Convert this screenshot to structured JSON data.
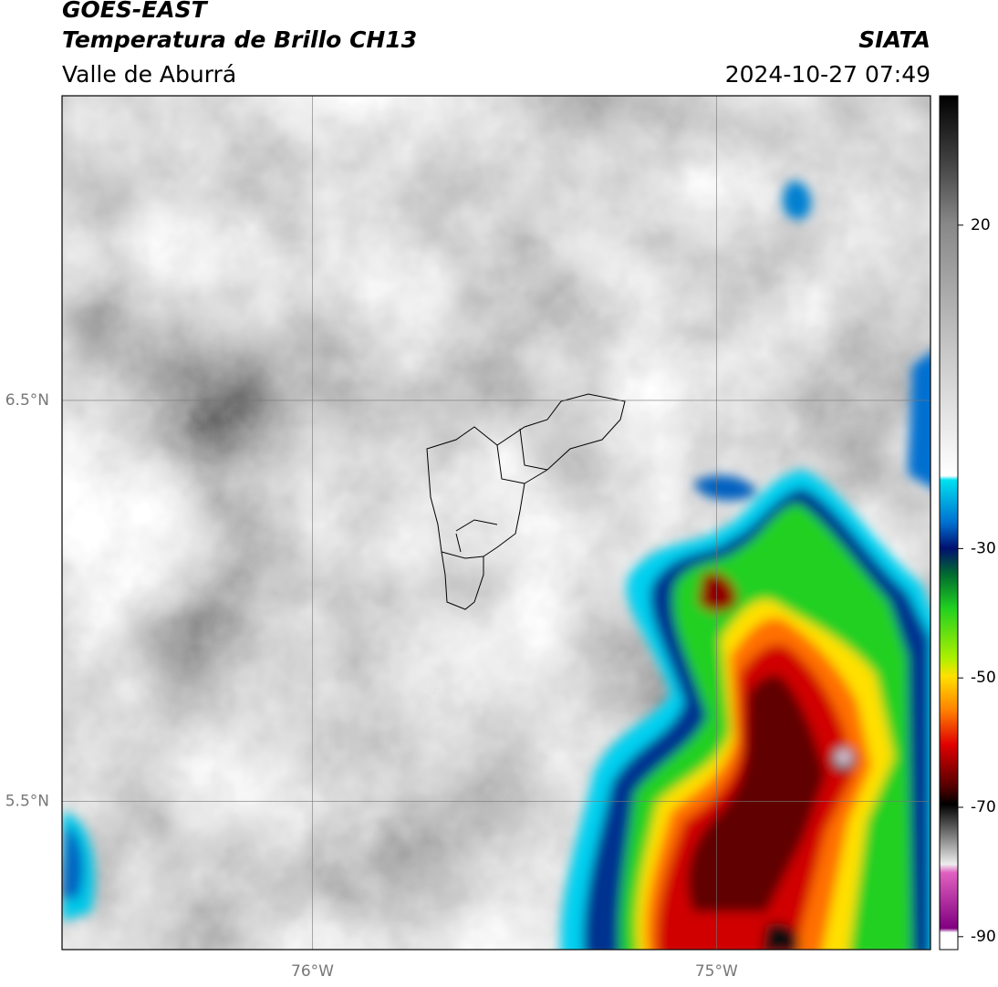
{
  "header": {
    "title": "GOES-EAST",
    "subtitle": "Temperatura de Brillo CH13",
    "region": "Valle de Aburrá",
    "source": "SIATA",
    "datetime": "2024-10-27 07:49"
  },
  "map": {
    "xlim": [
      -76.62,
      -74.47
    ],
    "ylim": [
      5.13,
      7.26
    ],
    "grid": true,
    "xticks": [
      {
        "value": -76,
        "label": "76°W"
      },
      {
        "value": -75,
        "label": "75°W"
      }
    ],
    "yticks": [
      {
        "value": 6.5,
        "label": "6.5°N"
      },
      {
        "value": 5.5,
        "label": "5.5°N"
      }
    ]
  },
  "colorbar": {
    "lim": [
      -92,
      40
    ],
    "ticks": [
      20,
      -30,
      -50,
      -70,
      -90
    ]
  }
}
